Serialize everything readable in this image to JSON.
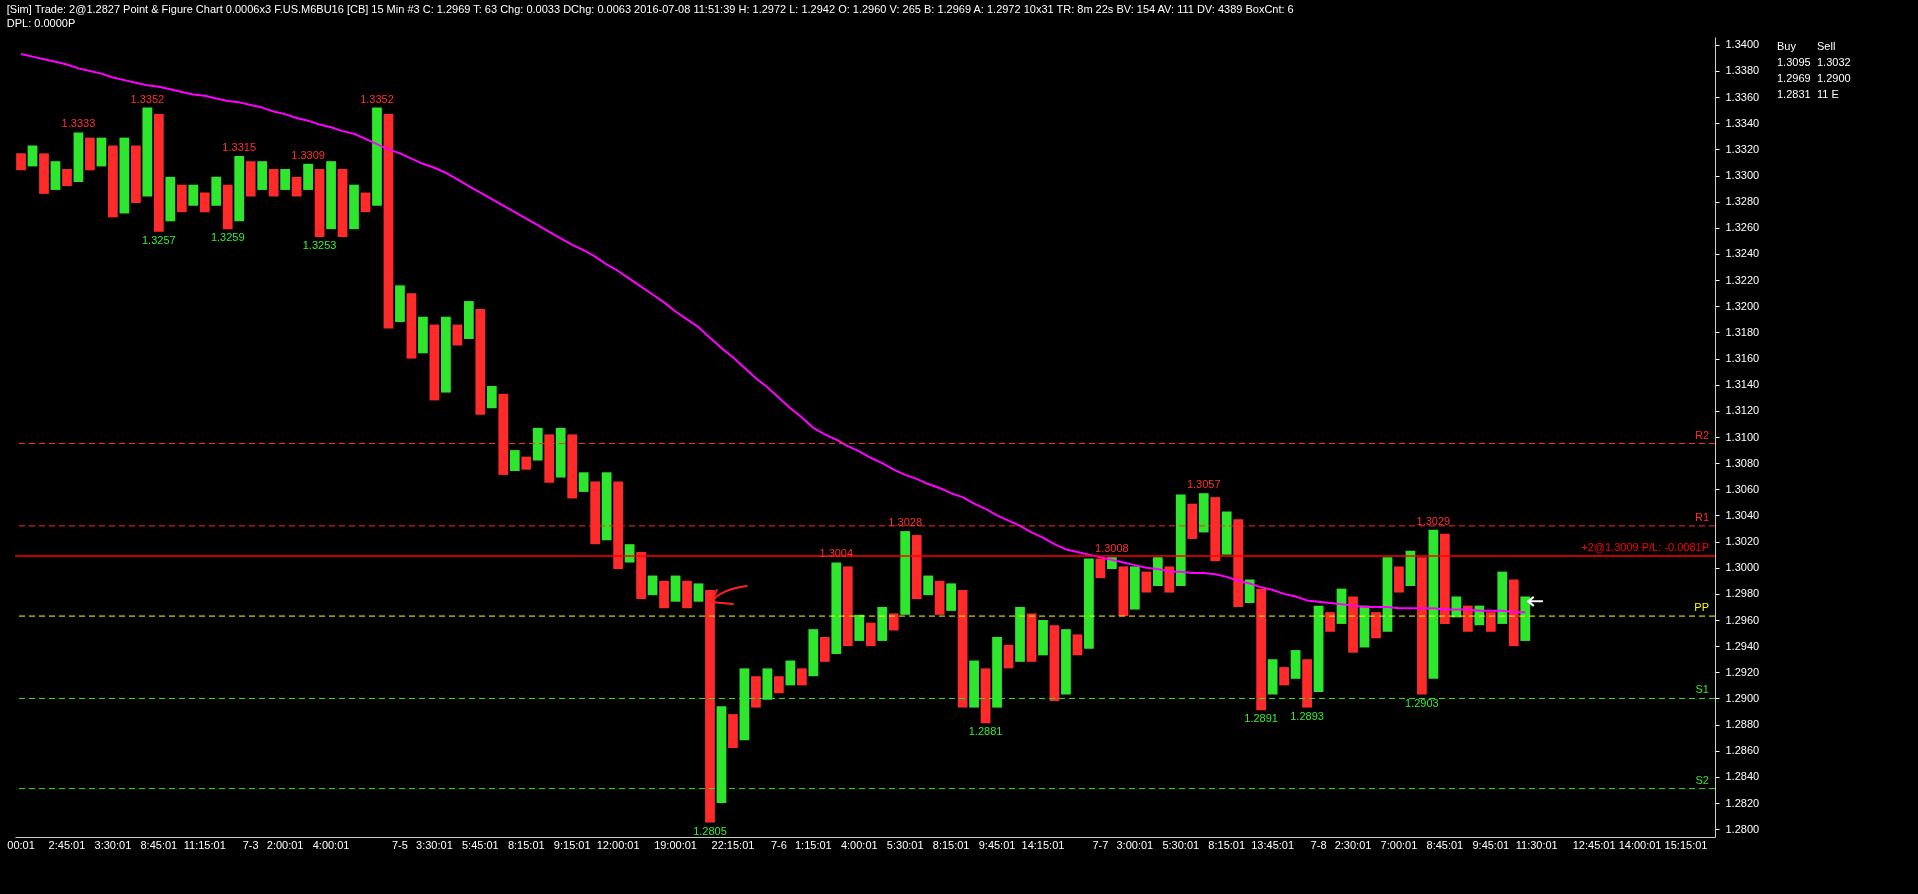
{
  "chart_data": {
    "type": "bar",
    "title": "[Sim] Trade: 2@1.2827 Point & Figure Chart 0.0006x3 F.US.M6BU16 [CB] 15 Min #3 C: 1.2969 T: 63 Chg: 0.0033 DChg: 0.0063 2016-07-08 11:51:39 H: 1.2972 L: 1.2942 O: 1.2960 V: 265 B: 1.2969 A: 1.2972 10x31 TR: 8m 22s BV: 154 AV: 111 DV: 4389 BoxCnt: 6",
    "subtitle": "DPL: 0.0000P",
    "categories": [
      "00:01",
      null,
      null,
      null,
      "2:45:01",
      null,
      null,
      null,
      "3:30:01",
      null,
      null,
      null,
      "8:45:01",
      null,
      null,
      null,
      "11:15:01",
      null,
      null,
      null,
      "7-3",
      null,
      null,
      "2:00:01",
      null,
      null,
      null,
      "4:00:01",
      null,
      null,
      null,
      null,
      null,
      "7-5",
      null,
      null,
      "3:30:01",
      null,
      null,
      null,
      "5:45:01",
      null,
      null,
      null,
      "8:15:01",
      null,
      null,
      null,
      "9:15:01",
      null,
      null,
      null,
      "12:00:01",
      null,
      null,
      null,
      null,
      "19:00:01",
      null,
      null,
      null,
      null,
      "22:15:01",
      null,
      null,
      null,
      "7-6",
      null,
      null,
      "1:15:01",
      null,
      null,
      null,
      "4:00:01",
      null,
      null,
      null,
      "5:30:01",
      null,
      null,
      null,
      "8:15:01",
      null,
      null,
      null,
      "9:45:01",
      null,
      null,
      null,
      "14:15:01",
      null,
      null,
      null,
      null,
      "7-7",
      null,
      null,
      "3:00:01",
      null,
      null,
      null,
      "5:30:01",
      null,
      null,
      null,
      "8:15:01",
      null,
      null,
      null,
      "13:45:01",
      null,
      null,
      null,
      "7-8",
      null,
      null,
      "2:30:01",
      null,
      null,
      null,
      "7:00:01",
      null,
      null,
      null,
      "8:45:01",
      null,
      null,
      null,
      "9:45:01",
      null,
      null,
      null,
      "11:30:01",
      null,
      null,
      null,
      null,
      "12:45:01",
      null,
      null,
      null,
      "14:00:01",
      null,
      null,
      null,
      "15:15:01",
      null,
      null
    ],
    "series": [
      {
        "values": [
          0.0013,
          0.0016,
          0.0031,
          0.0022,
          0.0013,
          0.0038,
          0.0025,
          0.0022,
          0.0055,
          0.0058,
          0.0044,
          0.0068,
          0.009,
          0.0034,
          0.0021,
          0.0016,
          0.0015,
          0.0022,
          0.0034,
          0.005,
          0.0027,
          0.0022,
          0.0021,
          0.0016,
          0.0015,
          0.002,
          0.0052,
          0.0052,
          0.0052,
          0.0034,
          0.0015,
          0.0075,
          0.0164,
          0.0028,
          0.005,
          0.0028,
          0.0058,
          0.0058,
          0.0016,
          0.0029,
          0.0081,
          0.0017,
          0.0062,
          0.0016,
          0.001,
          0.0025,
          0.0037,
          0.0038,
          0.0049,
          0.0015,
          0.0048,
          0.0052,
          0.0067,
          0.0014,
          0.0036,
          0.0015,
          0.0021,
          0.002,
          0.0021,
          0.0014,
          0.0178,
          0.0074,
          0.0026,
          0.0055,
          0.0024,
          0.0024,
          0.0013,
          0.0019,
          0.0013,
          0.0036,
          0.0019,
          0.007,
          0.0061,
          0.002,
          0.0018,
          0.0026,
          0.0013,
          0.0064,
          0.0049,
          0.0015,
          0.0026,
          0.0021,
          0.009,
          0.0036,
          0.0042,
          0.0054,
          0.0018,
          0.0042,
          0.0037,
          0.0027,
          0.0058,
          0.005,
          0.0016,
          0.0069,
          0.0015,
          0.0009,
          0.0038,
          0.0033,
          0.0016,
          0.0022,
          0.002,
          0.007,
          0.0027,
          0.003,
          0.0049,
          0.0033,
          0.0067,
          0.0018,
          0.0093,
          0.0027,
          0.0014,
          0.0022,
          0.0037,
          0.0066,
          0.0015,
          0.0027,
          0.0043,
          0.0032,
          0.002,
          0.0057,
          0.002,
          0.0027,
          0.0105,
          0.0114,
          0.0069,
          0.0016,
          0.002,
          0.0015,
          0.0015,
          0.004,
          0.0051,
          0.0034,
          null,
          null,
          null,
          null,
          null,
          null,
          null,
          null,
          null,
          null,
          null,
          null,
          null,
          null,
          null,
          null
        ],
        "base": [
          1.3304,
          1.3307,
          1.3286,
          1.3289,
          1.3292,
          1.3295,
          1.3304,
          1.3307,
          1.3268,
          1.3271,
          1.3279,
          1.3284,
          1.3257,
          1.3265,
          1.3272,
          1.3277,
          1.3272,
          1.3277,
          1.3259,
          1.3265,
          1.3284,
          1.3289,
          1.3284,
          1.3289,
          1.3284,
          1.3289,
          1.3253,
          1.3259,
          1.3253,
          1.3259,
          1.3272,
          1.3277,
          1.3183,
          1.3188,
          1.316,
          1.3164,
          1.3128,
          1.3134,
          1.317,
          1.3175,
          1.3117,
          1.3122,
          1.3071,
          1.3074,
          1.3075,
          1.3082,
          1.3065,
          1.3069,
          1.3053,
          1.3058,
          1.3018,
          1.3021,
          1.2999,
          1.3004,
          1.2976,
          1.2979,
          1.2969,
          1.2974,
          1.2969,
          1.2974,
          1.2805,
          1.282,
          1.2862,
          1.2868,
          1.2893,
          1.2899,
          1.2904,
          1.291,
          1.291,
          1.2917,
          1.2928,
          1.2934,
          1.294,
          1.2944,
          1.294,
          1.2944,
          1.2952,
          1.2964,
          1.2976,
          1.2979,
          1.2964,
          1.2967,
          1.2893,
          1.2893,
          1.2881,
          1.2893,
          1.2923,
          1.2928,
          1.2928,
          1.2933,
          1.2898,
          1.2903,
          1.2933,
          1.2938,
          1.2992,
          1.2999,
          1.2963,
          1.2968,
          1.2981,
          1.2986,
          1.2981,
          1.2986,
          1.3022,
          1.3027,
          1.3005,
          1.301,
          1.297,
          1.2973,
          1.2891,
          1.2903,
          1.291,
          1.2915,
          1.2893,
          1.2905,
          1.2951,
          1.2957,
          1.2935,
          1.2939,
          1.2946,
          1.2951,
          1.2981,
          1.2986,
          1.2903,
          1.2915,
          1.2957,
          1.2962,
          1.2951,
          1.2956,
          1.2951,
          1.2957,
          1.294,
          1.2944,
          null,
          null,
          null,
          null,
          null,
          null,
          null,
          null,
          null,
          null,
          null,
          null,
          null,
          null,
          null,
          null
        ],
        "colors": [
          "#ff2a2a",
          "#2ee62e",
          "#ff2a2a",
          "#2ee62e",
          "#ff2a2a",
          "#2ee62e",
          "#ff2a2a",
          "#2ee62e",
          "#ff2a2a",
          "#2ee62e",
          "#ff2a2a",
          "#2ee62e",
          "#ff2a2a",
          "#2ee62e",
          "#ff2a2a",
          "#2ee62e",
          "#ff2a2a",
          "#2ee62e",
          "#ff2a2a",
          "#2ee62e",
          "#ff2a2a",
          "#2ee62e",
          "#ff2a2a",
          "#2ee62e",
          "#ff2a2a",
          "#2ee62e",
          "#ff2a2a",
          "#2ee62e",
          "#ff2a2a",
          "#2ee62e",
          "#ff2a2a",
          "#2ee62e",
          "#ff2a2a",
          "#2ee62e",
          "#ff2a2a",
          "#2ee62e",
          "#ff2a2a",
          "#2ee62e",
          "#ff2a2a",
          "#2ee62e",
          "#ff2a2a",
          "#2ee62e",
          "#ff2a2a",
          "#2ee62e",
          "#ff2a2a",
          "#2ee62e",
          "#ff2a2a",
          "#2ee62e",
          "#ff2a2a",
          "#2ee62e",
          "#ff2a2a",
          "#2ee62e",
          "#ff2a2a",
          "#2ee62e",
          "#ff2a2a",
          "#2ee62e",
          "#ff2a2a",
          "#2ee62e",
          "#ff2a2a",
          "#2ee62e",
          "#ff2a2a",
          "#2ee62e",
          "#ff2a2a",
          "#2ee62e",
          "#ff2a2a",
          "#2ee62e",
          "#ff2a2a",
          "#2ee62e",
          "#ff2a2a",
          "#2ee62e",
          "#ff2a2a",
          "#2ee62e",
          "#ff2a2a",
          "#2ee62e",
          "#ff2a2a",
          "#2ee62e",
          "#ff2a2a",
          "#2ee62e",
          "#ff2a2a",
          "#2ee62e",
          "#ff2a2a",
          "#2ee62e",
          "#ff2a2a",
          "#2ee62e",
          "#ff2a2a",
          "#2ee62e",
          "#ff2a2a",
          "#2ee62e",
          "#ff2a2a",
          "#2ee62e",
          "#ff2a2a",
          "#2ee62e",
          "#ff2a2a",
          "#2ee62e",
          "#ff2a2a",
          "#2ee62e",
          "#ff2a2a",
          "#2ee62e",
          "#ff2a2a",
          "#2ee62e",
          "#ff2a2a",
          "#2ee62e",
          "#ff2a2a",
          "#2ee62e",
          "#ff2a2a",
          "#2ee62e",
          "#ff2a2a",
          "#2ee62e",
          "#ff2a2a",
          "#2ee62e",
          "#ff2a2a",
          "#2ee62e",
          "#ff2a2a",
          "#2ee62e",
          "#ff2a2a",
          "#2ee62e",
          "#ff2a2a",
          "#2ee62e",
          "#ff2a2a",
          "#2ee62e",
          "#ff2a2a",
          "#2ee62e",
          "#ff2a2a",
          "#2ee62e",
          "#ff2a2a",
          "#2ee62e",
          "#ff2a2a",
          "#2ee62e",
          "#ff2a2a",
          "#2ee62e",
          "#ff2a2a",
          "#2ee62e",
          null,
          null,
          null,
          null,
          null,
          null,
          null,
          null,
          null,
          null,
          null,
          null,
          null,
          null,
          null,
          null
        ]
      },
      {
        "type": "line",
        "color": "#ff00ff",
        "values": [
          1.3393,
          1.3391,
          1.3389,
          1.3387,
          1.3385,
          1.3382,
          1.338,
          1.3378,
          1.3375,
          1.3373,
          1.3371,
          1.3369,
          1.3368,
          1.3366,
          1.3364,
          1.3362,
          1.3361,
          1.3359,
          1.3357,
          1.3356,
          1.3354,
          1.3352,
          1.3349,
          1.3347,
          1.3344,
          1.3342,
          1.3339,
          1.3337,
          1.3334,
          1.3332,
          1.3328,
          1.3324,
          1.332,
          1.3317,
          1.3313,
          1.3309,
          1.3306,
          1.3302,
          1.3297,
          1.3292,
          1.3287,
          1.3282,
          1.3277,
          1.3272,
          1.3267,
          1.3262,
          1.3257,
          1.3252,
          1.3247,
          1.3243,
          1.3238,
          1.3232,
          1.3227,
          1.3221,
          1.3215,
          1.3209,
          1.3203,
          1.3196,
          1.319,
          1.3184,
          1.3176,
          1.3168,
          1.3161,
          1.3153,
          1.3145,
          1.3138,
          1.313,
          1.3122,
          1.3115,
          1.3107,
          1.3102,
          1.3098,
          1.3093,
          1.3089,
          1.3084,
          1.308,
          1.3075,
          1.3071,
          1.3068,
          1.3064,
          1.3061,
          1.3057,
          1.3054,
          1.3049,
          1.3045,
          1.304,
          1.3036,
          1.3032,
          1.3027,
          1.3023,
          1.3018,
          1.3014,
          1.3012,
          1.301,
          1.3008,
          1.3006,
          1.3004,
          1.3002,
          1.3,
          1.2999,
          1.2997,
          1.2997,
          1.2996,
          1.2996,
          1.2995,
          1.2993,
          1.299,
          1.2988,
          1.2985,
          1.2983,
          1.298,
          1.2978,
          1.2975,
          1.2974,
          1.2973,
          1.2972,
          1.2971,
          1.297,
          1.297,
          1.297,
          1.2969,
          1.2969,
          1.2969,
          1.2969,
          1.2968,
          1.2968,
          1.2968,
          1.2967,
          1.2967,
          1.2967,
          1.2966,
          1.2966,
          null,
          null,
          null,
          null,
          null,
          null,
          null,
          null,
          null,
          null,
          null,
          null,
          null,
          null,
          null,
          null
        ]
      }
    ],
    "ylim": [
      1.2794,
      1.3406
    ],
    "yticks": [
      {
        "value": 1.28,
        "label": "1.2800"
      },
      {
        "value": 1.282,
        "label": "1.2820"
      },
      {
        "value": 1.284,
        "label": "1.2840"
      },
      {
        "value": 1.286,
        "label": "1.2860"
      },
      {
        "value": 1.288,
        "label": "1.2880"
      },
      {
        "value": 1.29,
        "label": "1.2900"
      },
      {
        "value": 1.292,
        "label": "1.2920"
      },
      {
        "value": 1.294,
        "label": "1.2940"
      },
      {
        "value": 1.296,
        "label": "1.2960"
      },
      {
        "value": 1.298,
        "label": "1.2980"
      },
      {
        "value": 1.3,
        "label": "1.3000"
      },
      {
        "value": 1.302,
        "label": "1.3020"
      },
      {
        "value": 1.304,
        "label": "1.3040"
      },
      {
        "value": 1.306,
        "label": "1.3060"
      },
      {
        "value": 1.308,
        "label": "1.3080"
      },
      {
        "value": 1.31,
        "label": "1.3100"
      },
      {
        "value": 1.312,
        "label": "1.3120"
      },
      {
        "value": 1.314,
        "label": "1.3140"
      },
      {
        "value": 1.316,
        "label": "1.3160"
      },
      {
        "value": 1.318,
        "label": "1.3180"
      },
      {
        "value": 1.32,
        "label": "1.3200"
      },
      {
        "value": 1.322,
        "label": "1.3220"
      },
      {
        "value": 1.324,
        "label": "1.3240"
      },
      {
        "value": 1.326,
        "label": "1.3260"
      },
      {
        "value": 1.328,
        "label": "1.3280"
      },
      {
        "value": 1.33,
        "label": "1.3300"
      },
      {
        "value": 1.332,
        "label": "1.3320"
      },
      {
        "value": 1.334,
        "label": "1.3340"
      },
      {
        "value": 1.336,
        "label": "1.3360"
      },
      {
        "value": 1.338,
        "label": "1.3380"
      },
      {
        "value": 1.34,
        "label": "1.3400"
      }
    ],
    "ref_lines": [
      {
        "axis": "y",
        "value": 1.3009,
        "label": "+2@1.3009 P/L: -0.0081P",
        "color": "#ff0000",
        "line_style": "solid"
      },
      {
        "axis": "y",
        "value": 1.3095,
        "label": "R2",
        "color": "#ff2a2a",
        "line_style": "dashed"
      },
      {
        "axis": "y",
        "value": 1.3032,
        "label": "R1",
        "color": "#ff2a2a",
        "line_style": "dashed"
      },
      {
        "axis": "y",
        "value": 1.2963,
        "label": "PP",
        "color": "#ffff00",
        "line_style": "dashed"
      },
      {
        "axis": "y",
        "value": 1.29,
        "label": "S1",
        "color": "#2ee62e",
        "line_style": "dashed"
      },
      {
        "axis": "y",
        "value": 1.2831,
        "label": "S2",
        "color": "#2ee62e",
        "line_style": "dashed"
      }
    ],
    "annotations": [
      "Buy",
      "Sell",
      "1.3095",
      "1.3032",
      "1.2969",
      "1.2900",
      "1.2831",
      "11 E",
      {
        "text": "1.3333",
        "y": 1.3333
      },
      {
        "text": "1.3352",
        "y": 1.3352
      },
      {
        "text": "1.3257",
        "y": 1.3257
      },
      {
        "text": "1.3259",
        "y": 1.3259
      },
      {
        "text": "1.3315",
        "y": 1.3315
      },
      {
        "text": "1.3309",
        "y": 1.3309
      },
      {
        "text": "1.3253",
        "y": 1.3253
      },
      {
        "text": "1.3352",
        "y": 1.3352
      },
      {
        "text": "1.2805",
        "y": 1.2805
      },
      {
        "text": "1.3004",
        "y": 1.3004
      },
      {
        "text": "1.3028",
        "y": 1.3028
      },
      {
        "text": "1.2881",
        "y": 1.2881
      },
      {
        "text": "1.3008",
        "y": 1.3008
      },
      {
        "text": "1.3057",
        "y": 1.3057
      },
      {
        "text": "1.2891",
        "y": 1.2891
      },
      {
        "text": "1.2893",
        "y": 1.2893
      },
      {
        "text": "1.2903",
        "y": 1.2903
      },
      {
        "text": "1.3029",
        "y": 1.3029
      }
    ]
  }
}
